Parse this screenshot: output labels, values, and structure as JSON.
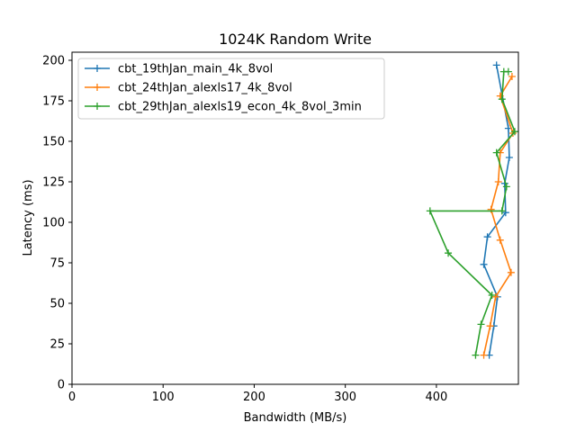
{
  "chart_data": {
    "type": "line",
    "title": "1024K  Random Write",
    "xlabel": "Bandwidth (MB/s)",
    "ylabel": "Latency (ms)",
    "xlim": [
      0,
      490
    ],
    "ylim": [
      0,
      205
    ],
    "xticks": [
      0,
      100,
      200,
      300,
      400
    ],
    "yticks": [
      0,
      25,
      50,
      75,
      100,
      125,
      150,
      175,
      200
    ],
    "grid": false,
    "legend_position": "upper-left",
    "series": [
      {
        "name": "cbt_19thJan_main_4k_8vol",
        "color": "#1f77b4",
        "x": [
          458,
          463,
          467,
          452,
          456,
          476,
          475,
          480,
          479,
          466
        ],
        "y": [
          18,
          36,
          54,
          74,
          91,
          106,
          124,
          140,
          158,
          197
        ]
      },
      {
        "name": "cbt_24thJan_alexls17_4k_8vol",
        "color": "#ff7f0e",
        "x": [
          452,
          459,
          465,
          482,
          470,
          460,
          468,
          470,
          484,
          470,
          483
        ],
        "y": [
          18,
          36,
          54,
          69,
          89,
          108,
          125,
          143,
          155,
          178,
          190
        ]
      },
      {
        "name": "cbt_29thJan_alexls19_econ_4k_8vol_3min",
        "color": "#2ca02c",
        "x": [
          443,
          449,
          461,
          413,
          393,
          472,
          477,
          466,
          486,
          472,
          474,
          479
        ],
        "y": [
          18,
          37,
          55,
          81,
          107,
          107,
          122,
          143,
          156,
          176,
          193,
          193
        ]
      }
    ]
  }
}
